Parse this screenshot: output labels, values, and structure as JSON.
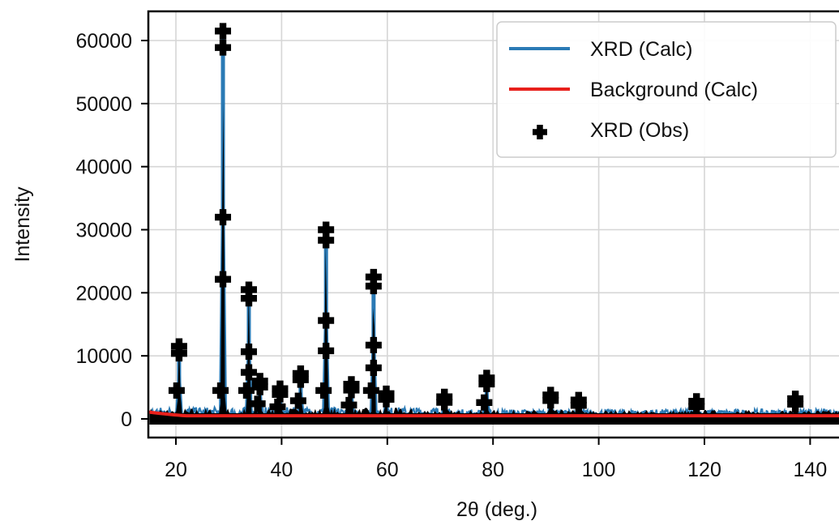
{
  "chart_data": {
    "type": "line",
    "title": "",
    "xlabel": "2θ (deg.)",
    "ylabel": "Intensity",
    "xlim": [
      15,
      150
    ],
    "ylim": [
      -3500,
      65000
    ],
    "xticks": [
      20,
      40,
      60,
      80,
      100,
      120,
      140
    ],
    "yticks": [
      0,
      10000,
      20000,
      30000,
      40000,
      50000,
      60000
    ],
    "grid": true,
    "legend_position": "top-right",
    "colors": {
      "calc": "#2a7ab5",
      "background": "#e8201c",
      "obs": "#000000"
    },
    "background_level": 500,
    "peaks": [
      {
        "x": 20.6,
        "y": 11500
      },
      {
        "x": 28.9,
        "y": 61500
      },
      {
        "x": 33.8,
        "y": 20500
      },
      {
        "x": 35.9,
        "y": 6000
      },
      {
        "x": 39.7,
        "y": 4800
      },
      {
        "x": 43.6,
        "y": 7200
      },
      {
        "x": 48.4,
        "y": 30000
      },
      {
        "x": 53.2,
        "y": 5500
      },
      {
        "x": 57.4,
        "y": 22500
      },
      {
        "x": 59.8,
        "y": 4000
      },
      {
        "x": 70.8,
        "y": 3500
      },
      {
        "x": 78.8,
        "y": 6500
      },
      {
        "x": 90.9,
        "y": 3800
      },
      {
        "x": 96.2,
        "y": 3000
      },
      {
        "x": 118.5,
        "y": 2800
      },
      {
        "x": 137.2,
        "y": 3200
      }
    ],
    "series": [
      {
        "name": "XRD (Calc)",
        "kind": "line"
      },
      {
        "name": "Background (Calc)",
        "kind": "line"
      },
      {
        "name": "XRD (Obs)",
        "kind": "marker"
      }
    ]
  }
}
